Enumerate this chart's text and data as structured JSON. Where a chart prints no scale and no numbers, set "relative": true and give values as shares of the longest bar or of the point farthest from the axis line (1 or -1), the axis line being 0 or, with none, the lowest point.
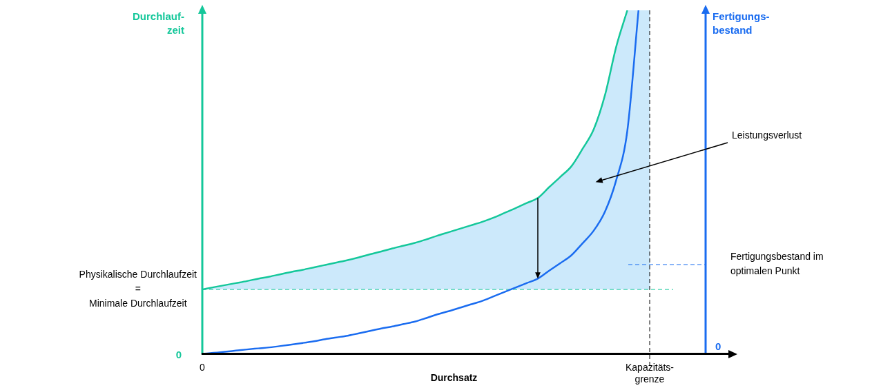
{
  "chart_data": {
    "type": "line",
    "relative": true,
    "ylabel": "Durchlauf-zeit",
    "y2label": "Fertigungs-bestand",
    "xlabel": "Durchsatz",
    "categories": [
      "0",
      null,
      null,
      null,
      null,
      null,
      null,
      null,
      null,
      null,
      null,
      null,
      null,
      null,
      null,
      null,
      null,
      null,
      null,
      null,
      null,
      null,
      null,
      null,
      null,
      null,
      null,
      null,
      null,
      null,
      null,
      null,
      null,
      null,
      null,
      null,
      null,
      null,
      null,
      null,
      "Kapazitäts-grenze",
      null,
      null,
      null,
      null,
      null
    ],
    "series": [
      {
        "color": "#14c79a",
        "values": [
          0.1875,
          0.194,
          0.2,
          0.206,
          0.212,
          0.219,
          0.225,
          0.232,
          0.239,
          0.245,
          0.252,
          0.259,
          0.266,
          0.273,
          0.281,
          0.29,
          0.298,
          0.307,
          0.315,
          0.323,
          0.333,
          0.344,
          0.354,
          0.364,
          0.374,
          0.384,
          0.396,
          0.41,
          0.424,
          0.439,
          0.454,
          0.485,
          0.515,
          0.546,
          0.597,
          0.654,
          0.753,
          0.893,
          1.0,
          null,
          null,
          null,
          null,
          null,
          null,
          null
        ],
        "lower": [
          0.1875,
          0.1875,
          0.1875,
          0.1875,
          0.1875,
          0.1875,
          0.1875,
          0.1875,
          0.1875,
          0.1875,
          0.1875,
          0.1875,
          0.1875,
          0.1875,
          0.1875,
          0.1875,
          0.1875,
          0.1875,
          0.1875,
          0.1875,
          0.1875,
          0.1875,
          0.1875,
          0.1875,
          0.1875,
          0.1875,
          0.1875,
          0.1875,
          0.1875,
          0.1875,
          0.1875,
          0.1875,
          0.1875,
          0.1875,
          0.1875,
          0.1875,
          0.1875,
          0.1875,
          0.1875,
          0.1875,
          0.1875,
          null,
          null,
          null,
          null,
          null
        ],
        "upper": [
          0.1875,
          0.194,
          0.2,
          0.206,
          0.212,
          0.219,
          0.225,
          0.232,
          0.239,
          0.245,
          0.252,
          0.259,
          0.266,
          0.273,
          0.281,
          0.29,
          0.298,
          0.307,
          0.315,
          0.323,
          0.333,
          0.344,
          0.354,
          0.364,
          0.374,
          0.384,
          0.396,
          0.41,
          0.424,
          0.439,
          0.454,
          0.485,
          0.515,
          0.546,
          0.597,
          0.654,
          0.753,
          0.893,
          1.0,
          1.0,
          1.0,
          null,
          null,
          null,
          null,
          null
        ]
      },
      {
        "color": "#1a6cf0",
        "axis": "y2",
        "values": [
          0,
          0.003,
          0.006,
          0.0095,
          0.013,
          0.016,
          0.019,
          0.023,
          0.0275,
          0.032,
          0.037,
          0.043,
          0.048,
          0.053,
          0.06,
          0.067,
          0.074,
          0.08,
          0.087,
          0.094,
          0.104,
          0.115,
          0.124,
          0.134,
          0.144,
          0.154,
          0.167,
          0.18,
          0.193,
          0.206,
          0.219,
          0.242,
          0.264,
          0.287,
          0.322,
          0.359,
          0.414,
          0.505,
          0.649,
          1.0,
          null,
          null,
          null,
          null,
          null,
          null
        ]
      }
    ],
    "ref_lines": [
      {
        "axis": "x",
        "value": "Kapazitäts-grenze",
        "color": "#000000",
        "line_style": "dashed"
      },
      {
        "axis": "y",
        "value": 0.1875,
        "label": "Physikalische Durchlaufzeit = Minimale Durchlaufzeit",
        "color": "#14c79a",
        "line_style": "dashed"
      },
      {
        "axis": "y2",
        "value": 0.26,
        "label": "Fertigungsbestand im optimalen Punkt",
        "color": "#1a6cf0",
        "line_style": "dashed"
      }
    ],
    "annotations": [
      "Leistungsverlust",
      "0",
      "0"
    ],
    "grid": false,
    "legend": false,
    "marker": "none",
    "line_style": "solid"
  }
}
